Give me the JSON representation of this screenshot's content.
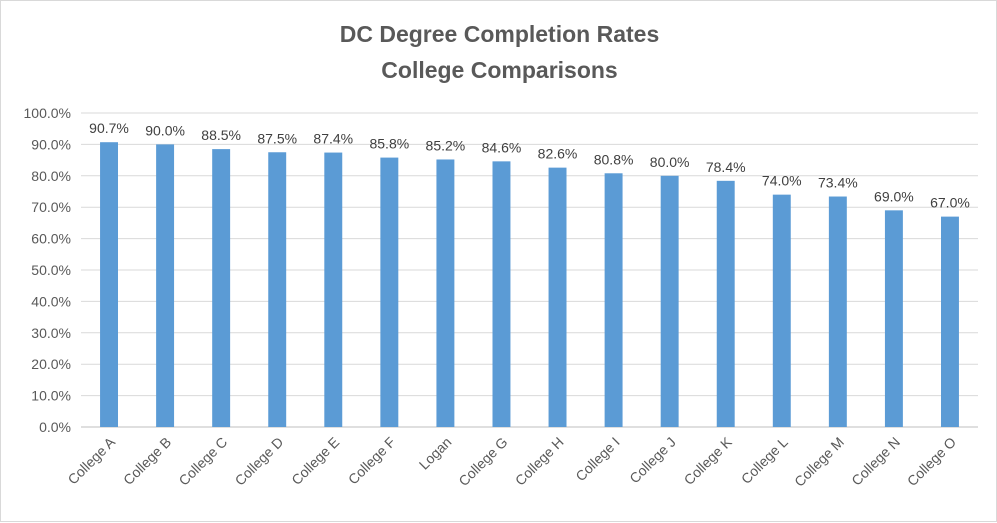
{
  "chart_data": {
    "type": "bar",
    "title": "DC Degree Completion Rates",
    "subtitle": "College Comparisons",
    "xlabel": "",
    "ylabel": "",
    "categories": [
      "College A",
      "College B",
      "College C",
      "College D",
      "College E",
      "College F",
      "Logan",
      "College G",
      "College H",
      "College I",
      "College J",
      "College K",
      "College L",
      "College M",
      "College N",
      "College O"
    ],
    "values": [
      90.7,
      90.0,
      88.5,
      87.5,
      87.4,
      85.8,
      85.2,
      84.6,
      82.6,
      80.8,
      80.0,
      78.4,
      74.0,
      73.4,
      69.0,
      67.0
    ],
    "value_labels": [
      "90.7%",
      "90.0%",
      "88.5%",
      "87.5%",
      "87.4%",
      "85.8%",
      "85.2%",
      "84.6%",
      "82.6%",
      "80.8%",
      "80.0%",
      "78.4%",
      "74.0%",
      "73.4%",
      "69.0%",
      "67.0%"
    ],
    "yticks": [
      "0.0%",
      "10.0%",
      "20.0%",
      "30.0%",
      "40.0%",
      "50.0%",
      "60.0%",
      "70.0%",
      "80.0%",
      "90.0%",
      "100.0%"
    ],
    "ylim": [
      0,
      100
    ],
    "grid": true,
    "legend": "none",
    "colors": {
      "bar": "#5b9bd5",
      "grid": "#d9d9d9",
      "axis": "#bfbfbf"
    }
  }
}
